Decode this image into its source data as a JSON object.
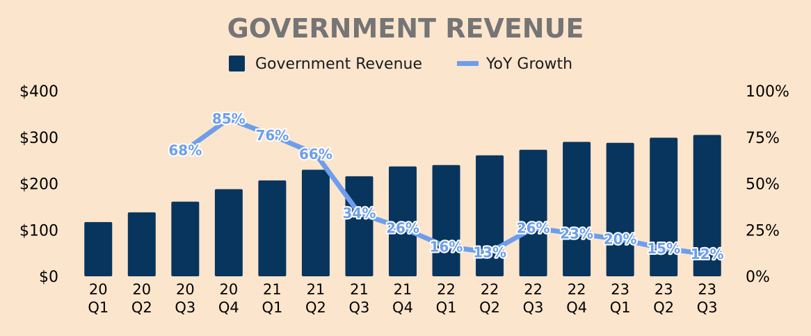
{
  "colors": {
    "background": "#fce5cd",
    "bar": "#08355e",
    "line": "#6d9eeb",
    "title": "#757575"
  },
  "chart_data": {
    "type": "bar",
    "title": "GOVERNMENT REVENUE",
    "legend": {
      "placement": "top-center",
      "entries": [
        "Government Revenue",
        "YoY Growth"
      ]
    },
    "categories": [
      [
        "20",
        "Q1"
      ],
      [
        "20",
        "Q2"
      ],
      [
        "20",
        "Q3"
      ],
      [
        "20",
        "Q4"
      ],
      [
        "21",
        "Q1"
      ],
      [
        "21",
        "Q2"
      ],
      [
        "21",
        "Q3"
      ],
      [
        "21",
        "Q4"
      ],
      [
        "22",
        "Q1"
      ],
      [
        "22",
        "Q2"
      ],
      [
        "22",
        "Q3"
      ],
      [
        "22",
        "Q4"
      ],
      [
        "23",
        "Q1"
      ],
      [
        "23",
        "Q2"
      ],
      [
        "23",
        "Q3"
      ]
    ],
    "series": [
      {
        "name": "Government Revenue",
        "type": "bar",
        "axis": "left",
        "values": [
          117,
          138,
          161,
          188,
          207,
          230,
          216,
          237,
          240,
          261,
          273,
          290,
          288,
          299,
          305
        ]
      },
      {
        "name": "YoY Growth",
        "type": "line",
        "axis": "right",
        "values": [
          null,
          null,
          68,
          85,
          76,
          66,
          34,
          26,
          16,
          13,
          26,
          23,
          20,
          15,
          12
        ],
        "labels": [
          null,
          null,
          "68%",
          "85%",
          "76%",
          "66%",
          "34%",
          "26%",
          "16%",
          "13%",
          "26%",
          "23%",
          "20%",
          "15%",
          "12%"
        ]
      }
    ],
    "y_left": {
      "min": 0,
      "max": 400,
      "ticks": [
        0,
        100,
        200,
        300,
        400
      ],
      "tick_labels": [
        "$0",
        "$100",
        "$200",
        "$300",
        "$400"
      ]
    },
    "y_right": {
      "min": 0,
      "max": 100,
      "ticks": [
        0,
        25,
        50,
        75,
        100
      ],
      "tick_labels": [
        "0%",
        "25%",
        "50%",
        "75%",
        "100%"
      ]
    },
    "grid": false
  }
}
